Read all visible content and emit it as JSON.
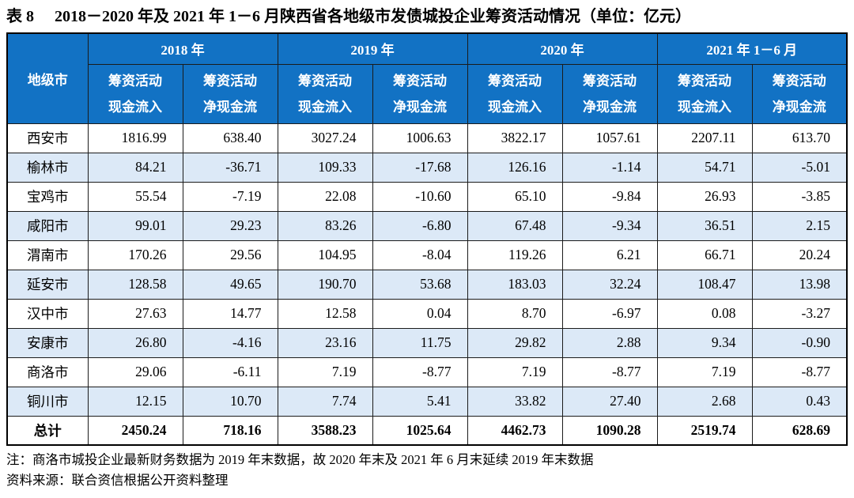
{
  "title": {
    "tag": "表 8",
    "text": "2018－2020 年及 2021 年 1－6 月陕西省各地级市发债城投企业筹资活动情况（单位：亿元）"
  },
  "table": {
    "city_header": "地级市",
    "year_groups": [
      {
        "label": "2018 年"
      },
      {
        "label": "2019 年"
      },
      {
        "label": "2020 年"
      },
      {
        "label": "2021 年 1－6 月"
      }
    ],
    "col_labels": {
      "inflow": [
        "筹资活动",
        "现金流入"
      ],
      "net": [
        "筹资活动",
        "净现金流"
      ]
    },
    "rows": [
      {
        "city": "西安市",
        "values": [
          "1816.99",
          "638.40",
          "3027.24",
          "1006.63",
          "3822.17",
          "1057.61",
          "2207.11",
          "613.70"
        ]
      },
      {
        "city": "榆林市",
        "values": [
          "84.21",
          "-36.71",
          "109.33",
          "-17.68",
          "126.16",
          "-1.14",
          "54.71",
          "-5.01"
        ]
      },
      {
        "city": "宝鸡市",
        "values": [
          "55.54",
          "-7.19",
          "22.08",
          "-10.60",
          "65.10",
          "-9.84",
          "26.93",
          "-3.85"
        ]
      },
      {
        "city": "咸阳市",
        "values": [
          "99.01",
          "29.23",
          "83.26",
          "-6.80",
          "67.48",
          "-9.34",
          "36.51",
          "2.15"
        ]
      },
      {
        "city": "渭南市",
        "values": [
          "170.26",
          "29.56",
          "104.95",
          "-8.04",
          "119.26",
          "6.21",
          "66.71",
          "20.24"
        ]
      },
      {
        "city": "延安市",
        "values": [
          "128.58",
          "49.65",
          "190.70",
          "53.68",
          "183.03",
          "32.24",
          "108.47",
          "13.98"
        ]
      },
      {
        "city": "汉中市",
        "values": [
          "27.63",
          "14.77",
          "12.58",
          "0.04",
          "8.70",
          "-6.97",
          "0.08",
          "-3.27"
        ]
      },
      {
        "city": "安康市",
        "values": [
          "26.80",
          "-4.16",
          "23.16",
          "11.75",
          "29.82",
          "2.88",
          "9.34",
          "-0.90"
        ]
      },
      {
        "city": "商洛市",
        "values": [
          "29.06",
          "-6.11",
          "7.19",
          "-8.77",
          "7.19",
          "-8.77",
          "7.19",
          "-8.77"
        ]
      },
      {
        "city": "铜川市",
        "values": [
          "12.15",
          "10.70",
          "7.74",
          "5.41",
          "33.82",
          "27.40",
          "2.68",
          "0.43"
        ]
      }
    ],
    "total": {
      "label": "总计",
      "values": [
        "2450.24",
        "718.16",
        "3588.23",
        "1025.64",
        "4462.73",
        "1090.28",
        "2519.74",
        "628.69"
      ]
    }
  },
  "notes": [
    "注：商洛市城投企业最新财务数据为 2019 年末数据，故 2020 年末及 2021 年 6 月末延续 2019 年末数据",
    "资料来源：联合资信根据公开资料整理"
  ],
  "colors": {
    "header_bg": "#1272C4",
    "stripe_bg": "#DCE9F7"
  }
}
